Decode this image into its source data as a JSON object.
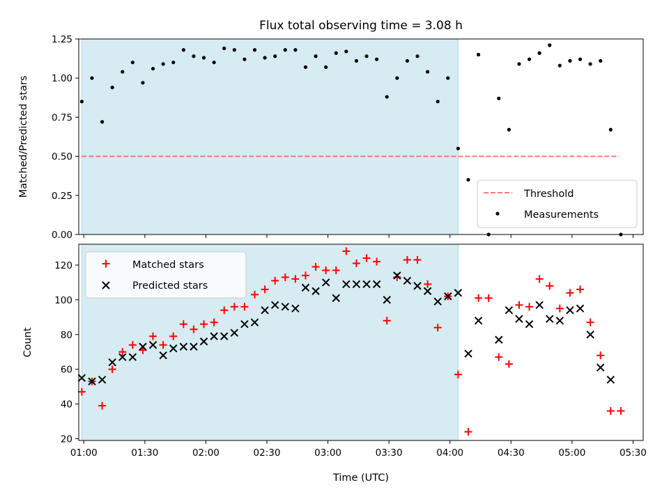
{
  "title": "Flux total observing time = 3.08 h",
  "colors": {
    "shade": "#add8e6",
    "threshold": "#ff5555",
    "matched": "#ff0000",
    "predicted": "#000000",
    "measurements": "#000000"
  },
  "chart_data": [
    {
      "type": "scatter",
      "panel": "top",
      "title": "Flux total observing time = 3.08 h",
      "ylabel": "Matched/Predicted stars",
      "xlabel": "",
      "xlim": [
        -2.5,
        275
      ],
      "ylim": [
        0.0,
        1.25
      ],
      "yticks": [
        0.0,
        0.25,
        0.5,
        0.75,
        1.0,
        1.25
      ],
      "ytick_labels": [
        "0.00",
        "0.25",
        "0.50",
        "0.75",
        "1.00",
        "1.25"
      ],
      "shaded_span_minutes": [
        -1,
        184
      ],
      "threshold": {
        "name": "Threshold",
        "value": 0.5,
        "x_range": [
          -1,
          263
        ]
      },
      "legend": [
        "Threshold",
        "Measurements"
      ],
      "legend_position": "lower-right",
      "series": [
        {
          "name": "Measurements",
          "x_minutes": [
            -1,
            4,
            9,
            14,
            19,
            24,
            29,
            34,
            39,
            44,
            49,
            54,
            59,
            64,
            69,
            74,
            79,
            84,
            89,
            94,
            99,
            104,
            109,
            114,
            119,
            124,
            129,
            134,
            139,
            144,
            149,
            154,
            159,
            164,
            169,
            174,
            179,
            184,
            189,
            194,
            199,
            204,
            209,
            214,
            219,
            224,
            229,
            234,
            239,
            244,
            249,
            254,
            259,
            264
          ],
          "values": [
            0.85,
            1.0,
            0.72,
            0.94,
            1.04,
            1.1,
            0.97,
            1.06,
            1.09,
            1.1,
            1.18,
            1.14,
            1.13,
            1.1,
            1.19,
            1.18,
            1.12,
            1.18,
            1.13,
            1.14,
            1.18,
            1.18,
            1.07,
            1.14,
            1.07,
            1.16,
            1.17,
            1.11,
            1.14,
            1.12,
            0.88,
            1.0,
            1.11,
            1.14,
            1.04,
            0.85,
            1.0,
            0.55,
            0.35,
            1.15,
            0.0,
            0.87,
            0.67,
            1.09,
            1.12,
            1.16,
            1.21,
            1.08,
            1.11,
            1.12,
            1.09,
            1.11,
            0.67,
            0.0
          ]
        }
      ]
    },
    {
      "type": "scatter",
      "panel": "bottom",
      "xlabel": "Time (UTC)",
      "ylabel": "Count",
      "xlim": [
        -2.5,
        275
      ],
      "ylim": [
        19,
        132
      ],
      "yticks": [
        20,
        40,
        60,
        80,
        100,
        120
      ],
      "ytick_labels": [
        "20",
        "40",
        "60",
        "80",
        "100",
        "120"
      ],
      "xticks_minutes": [
        0,
        30,
        60,
        90,
        120,
        150,
        180,
        210,
        240,
        270
      ],
      "xtick_labels": [
        "01:00",
        "01:30",
        "02:00",
        "02:30",
        "03:00",
        "03:30",
        "04:00",
        "04:30",
        "05:00",
        "05:30"
      ],
      "shaded_span_minutes": [
        -1,
        184
      ],
      "legend": [
        "Matched stars",
        "Predicted stars"
      ],
      "legend_position": "upper-left",
      "x_minutes": [
        -1,
        4,
        9,
        14,
        19,
        24,
        29,
        34,
        39,
        44,
        49,
        54,
        59,
        64,
        69,
        74,
        79,
        84,
        89,
        94,
        99,
        104,
        109,
        114,
        119,
        124,
        129,
        134,
        139,
        144,
        149,
        154,
        159,
        164,
        169,
        174,
        179,
        184,
        189,
        194,
        199,
        204,
        209,
        214,
        219,
        224,
        229,
        234,
        239,
        244,
        249,
        254,
        259,
        264
      ],
      "series": [
        {
          "name": "Matched stars",
          "marker": "+",
          "values": [
            47,
            53,
            39,
            60,
            70,
            74,
            71,
            79,
            74,
            79,
            86,
            83,
            86,
            87,
            94,
            96,
            96,
            103,
            106,
            111,
            113,
            112,
            114,
            119,
            117,
            117,
            128,
            121,
            124,
            122,
            88,
            113,
            123,
            123,
            109,
            84,
            102,
            57,
            24,
            101,
            101,
            67,
            63,
            97,
            96,
            112,
            108,
            95,
            104,
            106,
            87,
            68,
            36,
            36
          ]
        },
        {
          "name": "Predicted stars",
          "marker": "x",
          "x_minutes": [
            -1,
            4,
            9,
            14,
            19,
            24,
            29,
            34,
            39,
            44,
            49,
            54,
            59,
            64,
            69,
            74,
            79,
            84,
            89,
            94,
            99,
            104,
            109,
            114,
            119,
            124,
            129,
            134,
            139,
            144,
            149,
            154,
            159,
            164,
            169,
            174,
            179,
            184,
            189,
            194,
            204,
            209,
            214,
            219,
            224,
            229,
            234,
            239,
            244,
            249,
            254,
            259
          ],
          "values": [
            55,
            53,
            54,
            64,
            67,
            67,
            73,
            74,
            68,
            72,
            73,
            73,
            76,
            79,
            79,
            81,
            86,
            87,
            94,
            97,
            96,
            95,
            107,
            105,
            110,
            101,
            109,
            109,
            109,
            109,
            100,
            114,
            111,
            108,
            105,
            99,
            102,
            104,
            69,
            88,
            77,
            94,
            89,
            86,
            97,
            89,
            88,
            94,
            95,
            80,
            61,
            54
          ]
        }
      ]
    }
  ]
}
